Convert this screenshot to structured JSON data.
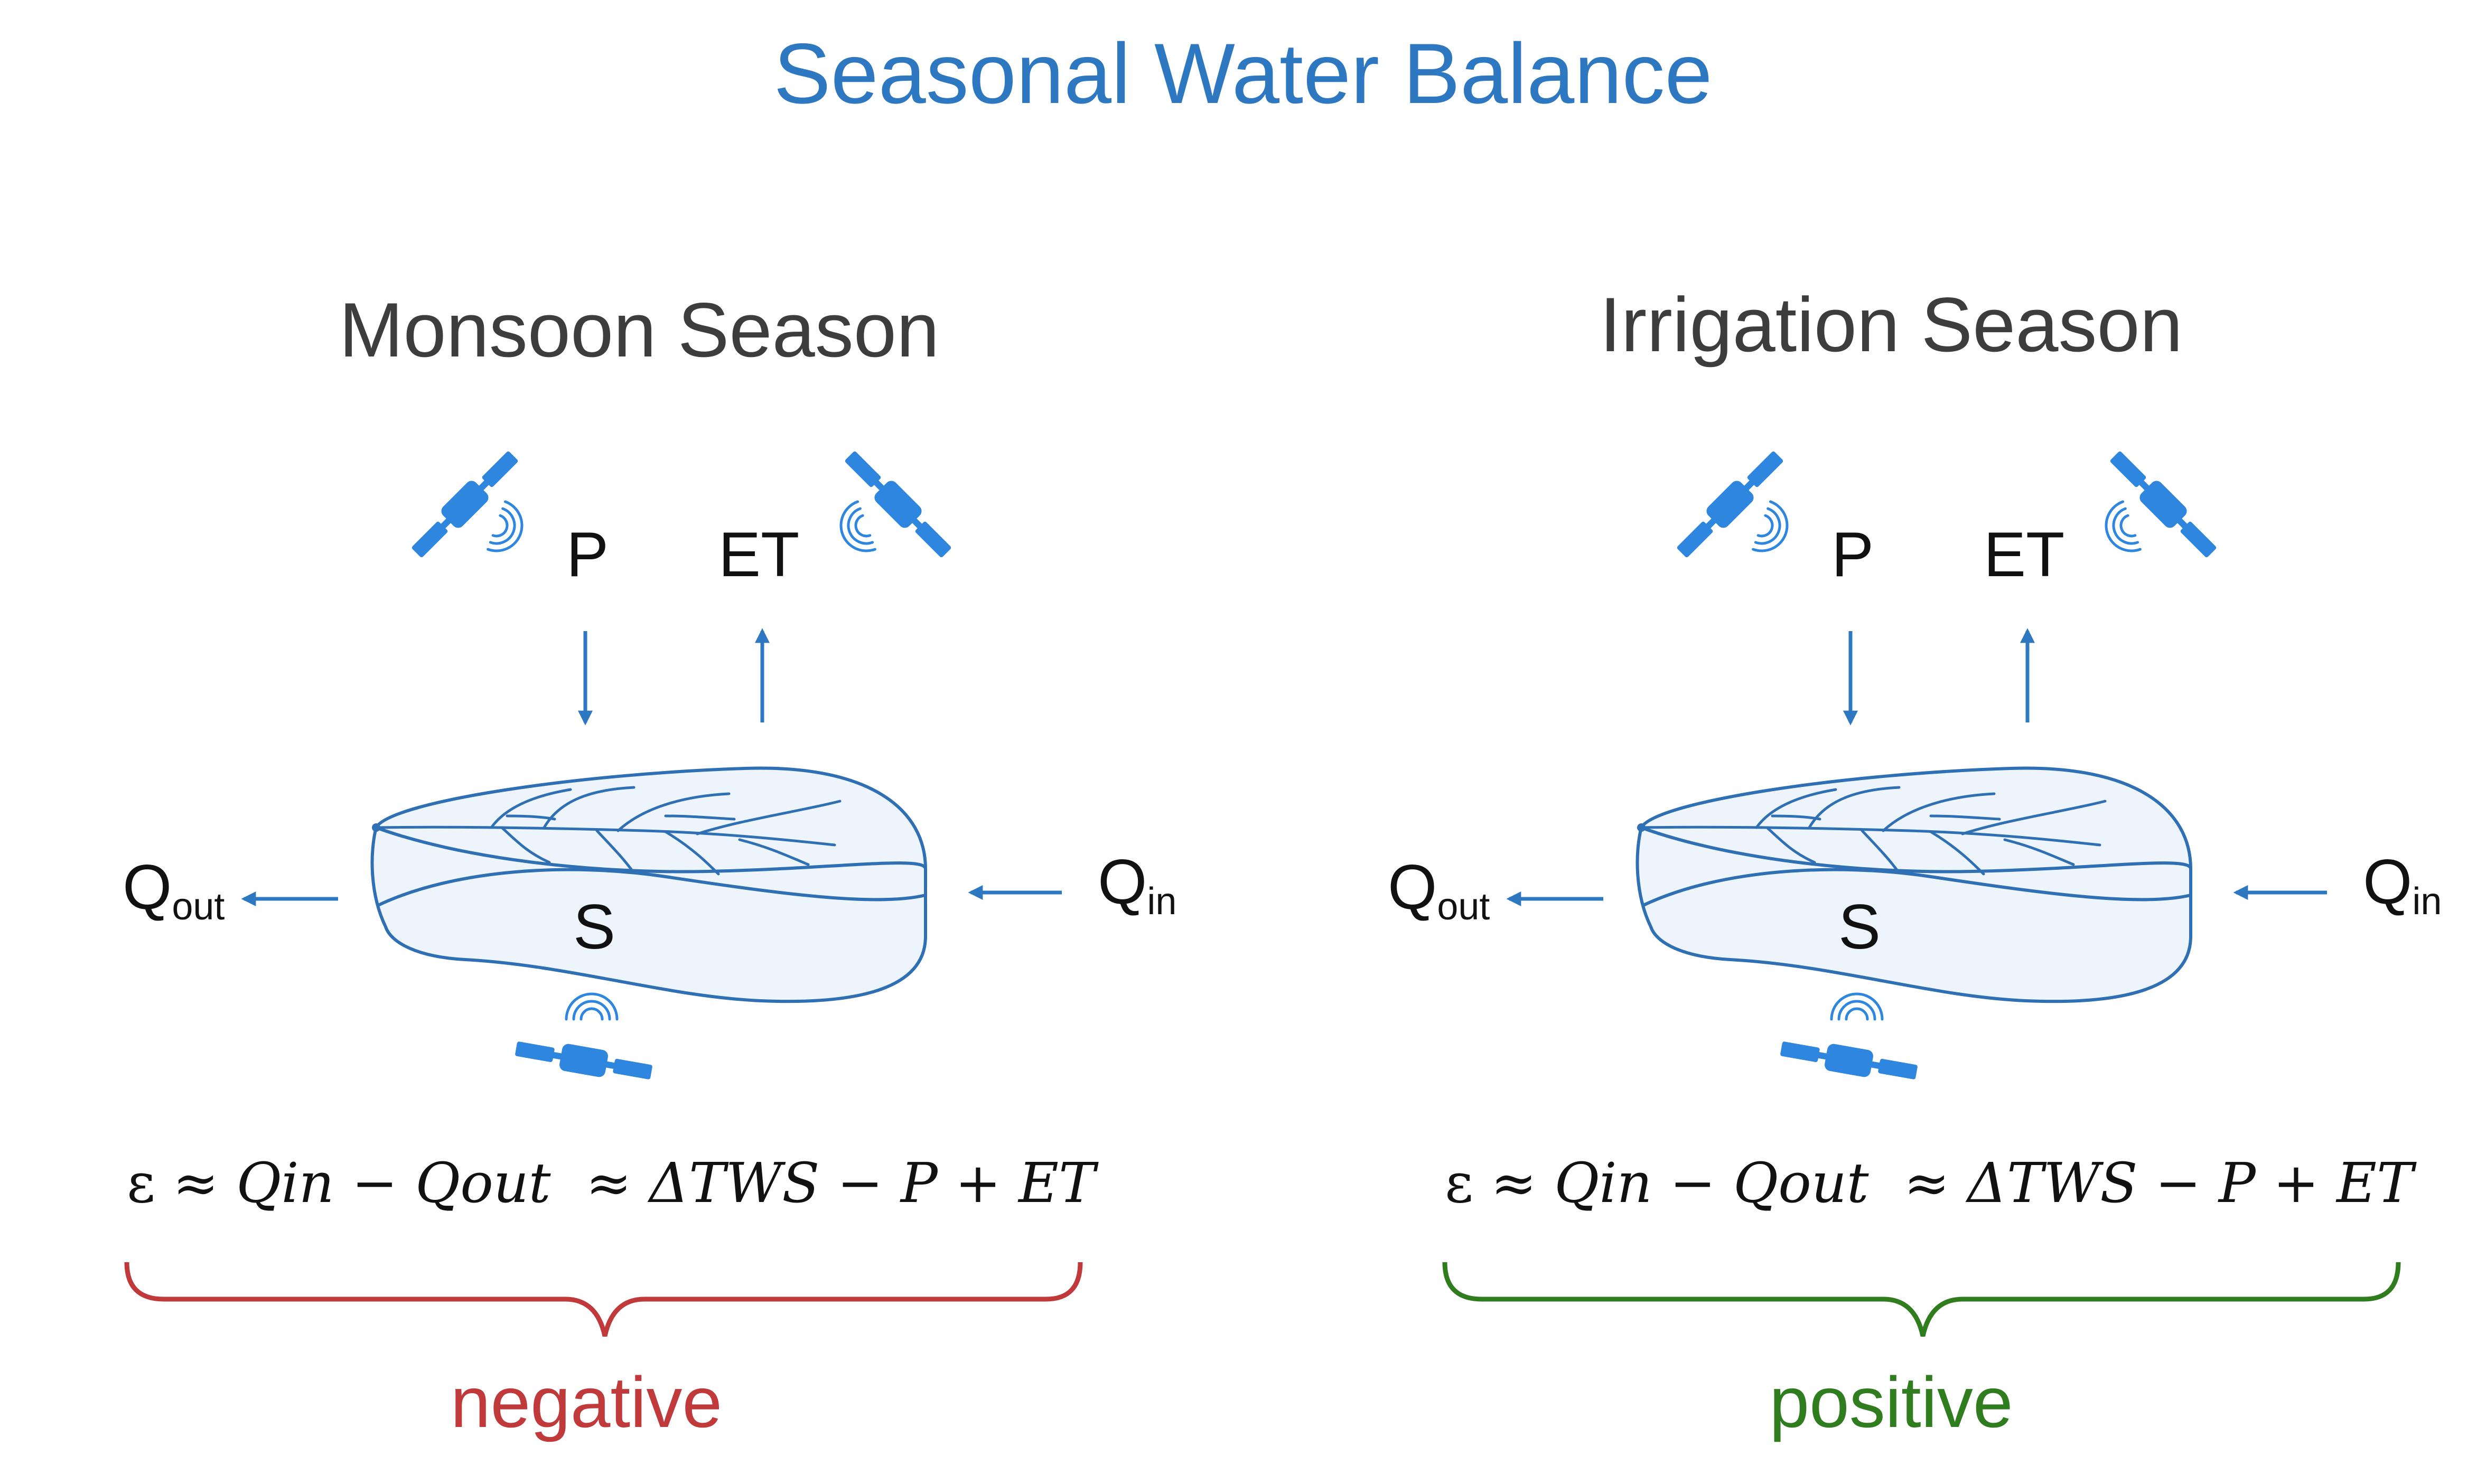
{
  "title": "Seasonal Water Balance",
  "colors": {
    "title": "#2e78c2",
    "season_text": "#3d3d3d",
    "arrow": "#2e78c2",
    "basin_stroke": "#2f6fb3",
    "basin_fill": "#eef4fb",
    "satellite": "#2e86de",
    "negative": "#c0393b",
    "positive": "#2f7d1e"
  },
  "panels": [
    {
      "season": "Monsoon Season",
      "labels": {
        "p": "P",
        "et": "ET",
        "s": "S",
        "q_out_main": "Q",
        "q_out_sub": "out",
        "q_in_main": "Q",
        "q_in_sub": "in"
      },
      "equation": {
        "eps": "ε",
        "approx1": "≈",
        "qin": "Qin",
        "minus1": "−",
        "qout": "Qout",
        "approx2": "≈",
        "dtws": "ΔTWS",
        "minus2": "−",
        "p": "P",
        "plus": "+",
        "et": "ET"
      },
      "sign": "negative",
      "icons": [
        "satellite-icon",
        "satellite-icon",
        "satellite-icon"
      ]
    },
    {
      "season": "Irrigation Season",
      "labels": {
        "p": "P",
        "et": "ET",
        "s": "S",
        "q_out_main": "Q",
        "q_out_sub": "out",
        "q_in_main": "Q",
        "q_in_sub": "in"
      },
      "equation": {
        "eps": "ε",
        "approx1": "≈",
        "qin": "Qin",
        "minus1": "−",
        "qout": "Qout",
        "approx2": "≈",
        "dtws": "ΔTWS",
        "minus2": "−",
        "p": "P",
        "plus": "+",
        "et": "ET"
      },
      "sign": "positive",
      "icons": [
        "satellite-icon",
        "satellite-icon",
        "satellite-icon"
      ]
    }
  ]
}
